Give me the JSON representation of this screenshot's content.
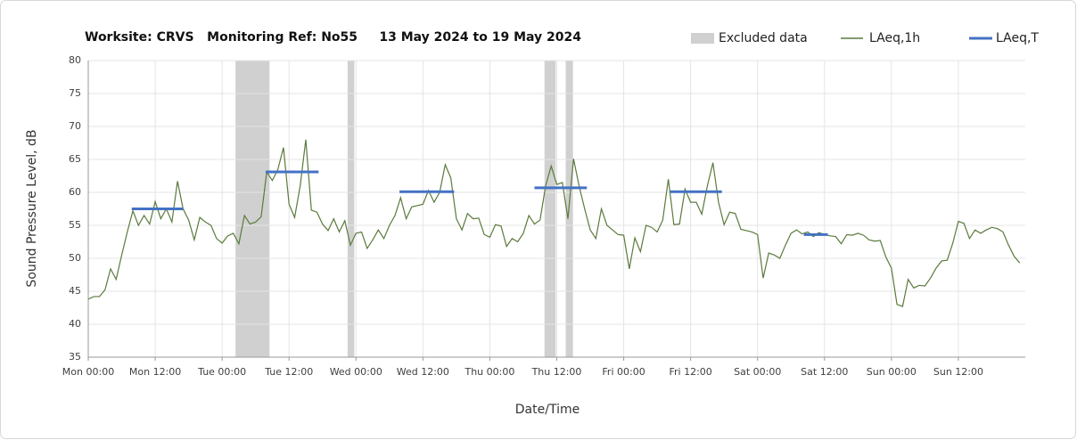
{
  "chart_data": {
    "type": "line",
    "title": "Worksite: CRVS   Monitoring Ref: No55     13 May 2024 to 19 May 2024",
    "xlabel": "Date/Time",
    "ylabel": "Sound Pressure Level, dB",
    "legend": "top right",
    "grid": true,
    "xlim": [
      0,
      168
    ],
    "xticks": [
      {
        "value": 0,
        "label": "Mon 00:00"
      },
      {
        "value": 12,
        "label": "Mon 12:00"
      },
      {
        "value": 24,
        "label": "Tue 00:00"
      },
      {
        "value": 36,
        "label": "Tue 12:00"
      },
      {
        "value": 48,
        "label": "Wed 00:00"
      },
      {
        "value": 60,
        "label": "Wed 12:00"
      },
      {
        "value": 72,
        "label": "Thu 00:00"
      },
      {
        "value": 84,
        "label": "Thu 12:00"
      },
      {
        "value": 96,
        "label": "Fri 00:00"
      },
      {
        "value": 108,
        "label": "Fri 12:00"
      },
      {
        "value": 120,
        "label": "Sat 00:00"
      },
      {
        "value": 132,
        "label": "Sat 12:00"
      },
      {
        "value": 144,
        "label": "Sun 00:00"
      },
      {
        "value": 156,
        "label": "Sun 12:00"
      }
    ],
    "ylim": [
      35,
      80
    ],
    "yticks": [
      35,
      40,
      45,
      50,
      55,
      60,
      65,
      70,
      75,
      80
    ],
    "x": [
      0,
      1,
      2,
      3,
      4,
      5,
      6,
      7,
      8,
      9,
      10,
      11,
      12,
      13,
      14,
      15,
      16,
      17,
      18,
      19,
      20,
      21,
      22,
      23,
      24,
      25,
      26,
      27,
      28,
      29,
      30,
      31,
      32,
      33,
      34,
      35,
      36,
      37,
      38,
      39,
      40,
      41,
      42,
      43,
      44,
      45,
      46,
      47,
      48,
      49,
      50,
      51,
      52,
      53,
      54,
      55,
      56,
      57,
      58,
      59,
      60,
      61,
      62,
      63,
      64,
      65,
      66,
      67,
      68,
      69,
      70,
      71,
      72,
      73,
      74,
      75,
      76,
      77,
      78,
      79,
      80,
      81,
      82,
      83,
      84,
      85,
      86,
      87,
      88,
      89,
      90,
      91,
      92,
      93,
      94,
      95,
      96,
      97,
      98,
      99,
      100,
      101,
      102,
      103,
      104,
      105,
      106,
      107,
      108,
      109,
      110,
      111,
      112,
      113,
      114,
      115,
      116,
      117,
      118,
      119,
      120,
      121,
      122,
      123,
      124,
      125,
      126,
      127,
      128,
      129,
      130,
      131,
      132,
      133,
      134,
      135,
      136,
      137,
      138,
      139,
      140,
      141,
      142,
      143,
      144,
      145,
      146,
      147,
      148,
      149,
      150,
      151,
      152,
      153,
      154,
      155,
      156,
      157,
      158,
      159,
      160,
      161,
      162,
      163,
      164,
      165,
      166,
      167
    ],
    "series": [
      {
        "name": "LAeq,1h",
        "color": "#5b7a3c",
        "values": [
          43.8,
          44.2,
          44.2,
          45.2,
          48.4,
          46.8,
          50.5,
          54,
          57.2,
          55,
          56.5,
          55.2,
          58.6,
          56,
          57.5,
          55.5,
          61.7,
          57.5,
          55.8,
          52.8,
          56.2,
          55.5,
          55,
          53,
          52.3,
          53.4,
          53.8,
          52.2,
          56.5,
          55.2,
          55.5,
          56.3,
          63.1,
          61.8,
          63.5,
          66.8,
          58.2,
          56.2,
          61,
          68,
          57.3,
          57,
          55.2,
          54.2,
          56,
          54,
          55.7,
          52,
          53.8,
          54,
          51.5,
          52.8,
          54.3,
          53,
          55,
          56.5,
          59.2,
          56,
          57.8,
          58,
          58.2,
          60.3,
          58.5,
          60,
          64.2,
          62.2,
          56,
          54.3,
          56.8,
          56,
          56.1,
          53.6,
          53.2,
          55.1,
          54.9,
          51.8,
          53,
          52.5,
          53.8,
          56.5,
          55.2,
          55.8,
          61,
          64,
          61.2,
          61.5,
          56,
          65.1,
          61,
          57.5,
          54.3,
          53,
          57.5,
          55,
          54.3,
          53.6,
          53.5,
          48.4,
          53.1,
          51,
          55,
          54.7,
          54,
          55.8,
          62,
          55.1,
          55.2,
          60.5,
          58.5,
          58.5,
          56.7,
          61,
          64.5,
          58.5,
          55.1,
          57,
          56.8,
          54.4,
          54.2,
          54,
          53.6,
          47,
          50.8,
          50.5,
          50,
          52,
          53.8,
          54.3,
          53.7,
          54,
          53.3,
          53.9,
          53.6,
          53.4,
          53.3,
          52.2,
          53.6,
          53.5,
          53.8,
          53.5,
          52.8,
          52.6,
          52.7,
          50.2,
          48.5,
          43,
          42.7,
          46.8,
          45.5,
          45.9,
          45.8,
          47,
          48.5,
          49.6,
          49.7,
          52.3,
          55.6,
          55.3,
          53,
          54.3,
          53.8,
          54.3,
          54.7,
          54.5,
          54,
          52,
          50.3,
          49.3
        ]
      }
    ],
    "excluded": {
      "name": "Excluded data",
      "color": "#d0d0d0",
      "ranges": [
        [
          26.4,
          32.5
        ],
        [
          46.5,
          47.7
        ],
        [
          81.8,
          83.8
        ],
        [
          85.6,
          86.9
        ]
      ]
    },
    "period_levels": {
      "name": "LAeq,T",
      "color": "#4472c4",
      "segments": [
        {
          "start": 7.8,
          "end": 17,
          "value": 57.5
        },
        {
          "start": 31.8,
          "end": 41.3,
          "value": 63.1
        },
        {
          "start": 55.8,
          "end": 65.6,
          "value": 60.1
        },
        {
          "start": 80,
          "end": 89.4,
          "value": 60.7
        },
        {
          "start": 104.3,
          "end": 113.6,
          "value": 60.1
        },
        {
          "start": 128.3,
          "end": 132.6,
          "value": 53.6
        }
      ]
    }
  }
}
